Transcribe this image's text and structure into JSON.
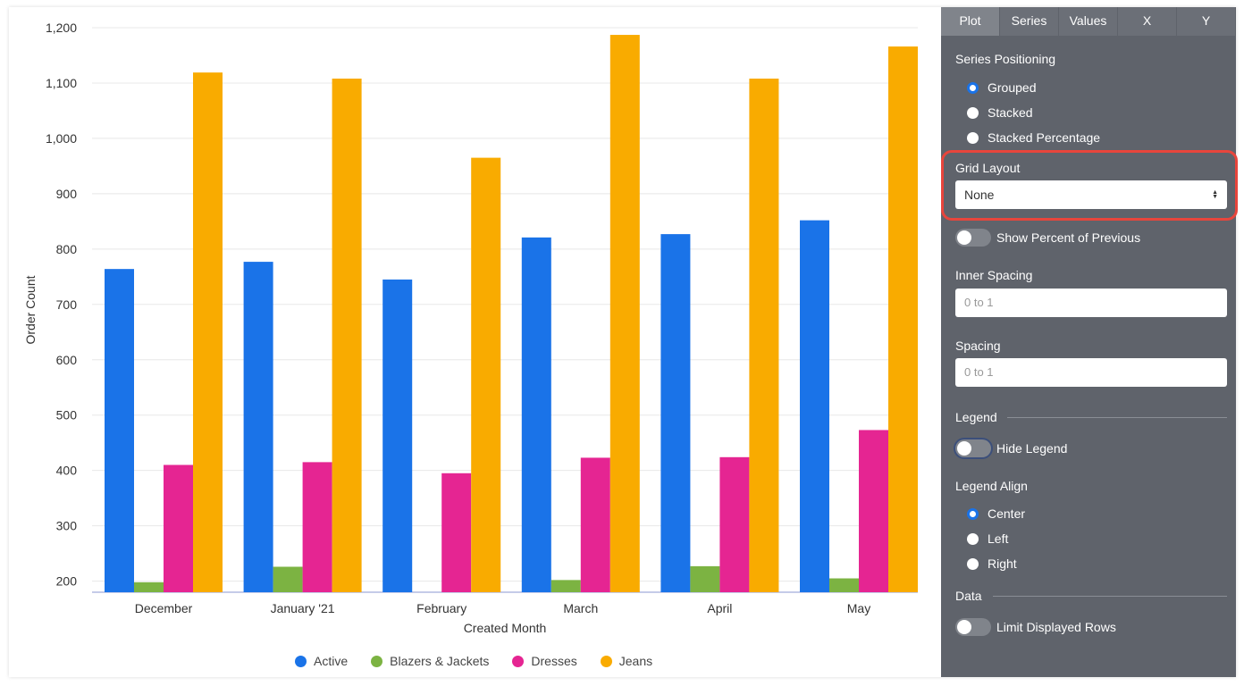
{
  "chart_data": {
    "type": "bar",
    "categories": [
      "December",
      "January '21",
      "February",
      "March",
      "April",
      "May"
    ],
    "series": [
      {
        "name": "Active",
        "color": "#1a73e8",
        "values": [
          764,
          777,
          745,
          821,
          827,
          852
        ]
      },
      {
        "name": "Blazers & Jackets",
        "color": "#7cb342",
        "values": [
          198,
          226,
          null,
          202,
          227,
          205
        ]
      },
      {
        "name": "Dresses",
        "color": "#e52592",
        "values": [
          410,
          415,
          395,
          423,
          424,
          473
        ]
      },
      {
        "name": "Jeans",
        "color": "#f9ab00",
        "values": [
          1119,
          1108,
          965,
          1187,
          1108,
          1166
        ]
      }
    ],
    "xlabel": "Created Month",
    "ylabel": "Order Count",
    "ylim": [
      180,
      1200
    ],
    "yticks": [
      200,
      300,
      400,
      500,
      600,
      700,
      800,
      900,
      1000,
      1100,
      1200
    ],
    "ytick_labels": [
      "200",
      "300",
      "400",
      "500",
      "600",
      "700",
      "800",
      "900",
      "1,000",
      "1,100",
      "1,200"
    ],
    "grid": true,
    "legend": "bottom"
  },
  "panel": {
    "tabs": [
      "Plot",
      "Series",
      "Values",
      "X",
      "Y"
    ],
    "series_positioning": {
      "label": "Series Positioning",
      "options": [
        "Grouped",
        "Stacked",
        "Stacked Percentage"
      ],
      "selected": "Grouped"
    },
    "grid_layout": {
      "label": "Grid Layout",
      "value": "None"
    },
    "show_percent": {
      "label": "Show Percent of Previous",
      "on": false
    },
    "inner_spacing": {
      "label": "Inner Spacing",
      "placeholder": "0 to 1"
    },
    "spacing": {
      "label": "Spacing",
      "placeholder": "0 to 1"
    },
    "legend_heading": "Legend",
    "hide_legend": {
      "label": "Hide Legend",
      "on": false
    },
    "legend_align": {
      "label": "Legend Align",
      "options": [
        "Center",
        "Left",
        "Right"
      ],
      "selected": "Center"
    },
    "data_heading": "Data",
    "limit_rows": {
      "label": "Limit Displayed Rows",
      "on": false
    }
  }
}
